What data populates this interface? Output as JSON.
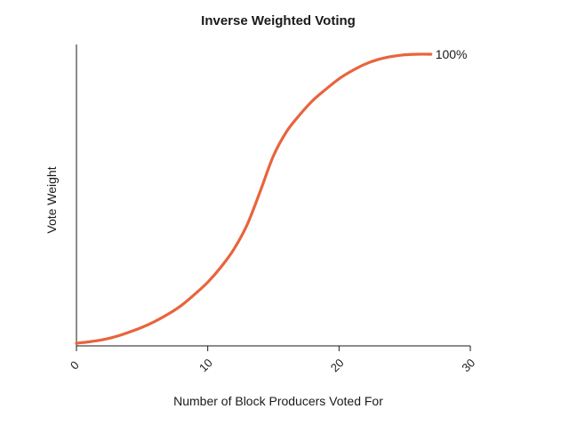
{
  "chart_data": {
    "type": "line",
    "title": "Inverse Weighted Voting",
    "xlabel": "Number of Block Producers Voted For",
    "ylabel": "Vote Weight",
    "xlim": [
      0,
      30
    ],
    "ylim": [
      0,
      100
    ],
    "x_ticks": [
      "0",
      "10",
      "20",
      "30"
    ],
    "grid": false,
    "series": [
      {
        "color": "#e8643c",
        "x": [
          0,
          1,
          2,
          3,
          4,
          5,
          6,
          7,
          8,
          9,
          10,
          11,
          12,
          13,
          14,
          15,
          16,
          17,
          18,
          19,
          20,
          21,
          22,
          23,
          24,
          25,
          26,
          27
        ],
        "y": [
          0,
          0.5,
          1.2,
          2.3,
          3.8,
          5.5,
          7.6,
          10.1,
          13.1,
          16.9,
          21.1,
          26.3,
          32.6,
          41.0,
          52.6,
          64.8,
          73.2,
          79.0,
          84.0,
          87.9,
          91.5,
          94.3,
          96.6,
          98.2,
          99.2,
          99.8,
          100,
          100
        ]
      }
    ],
    "annotations": [
      {
        "text": "100%",
        "x": 27,
        "y": 100
      }
    ]
  }
}
